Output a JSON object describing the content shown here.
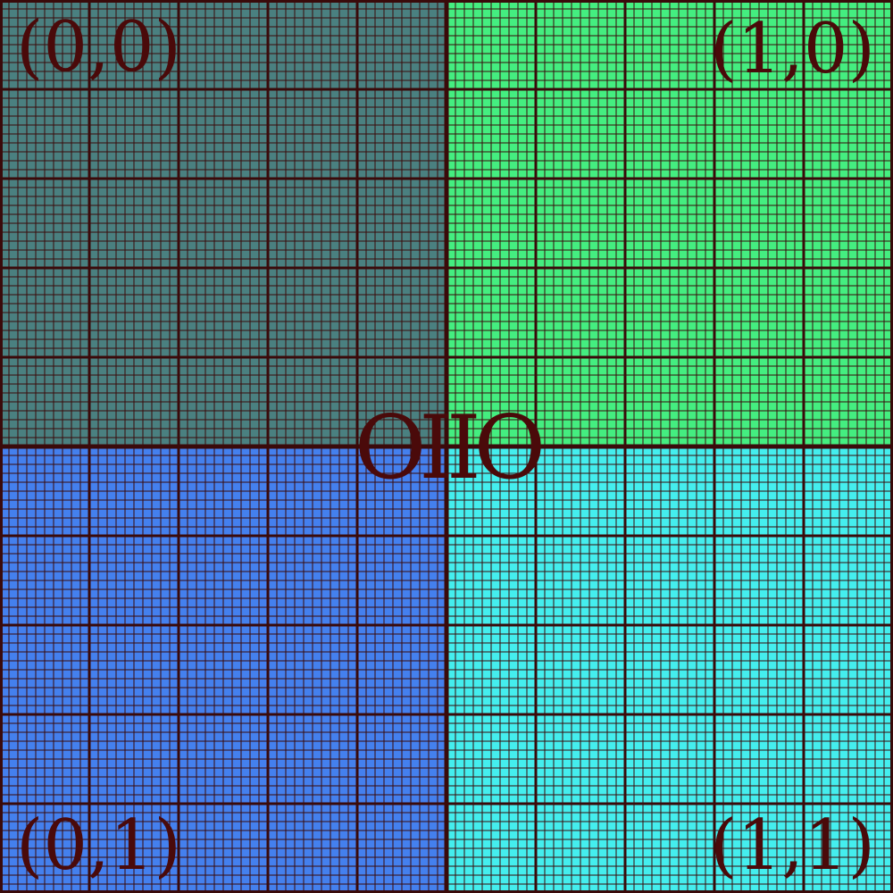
{
  "quadrants": [
    {
      "id": "q-00",
      "label": "(0,0)",
      "color": "#4a8080"
    },
    {
      "id": "q-10",
      "label": "(1,0)",
      "color": "#44ee80"
    },
    {
      "id": "q-01",
      "label": "(0,1)",
      "color": "#4480ee"
    },
    {
      "id": "q-11",
      "label": "(1,1)",
      "color": "#44eeee"
    }
  ],
  "center_label": "OIIO",
  "line_color": "#3a0a0a"
}
